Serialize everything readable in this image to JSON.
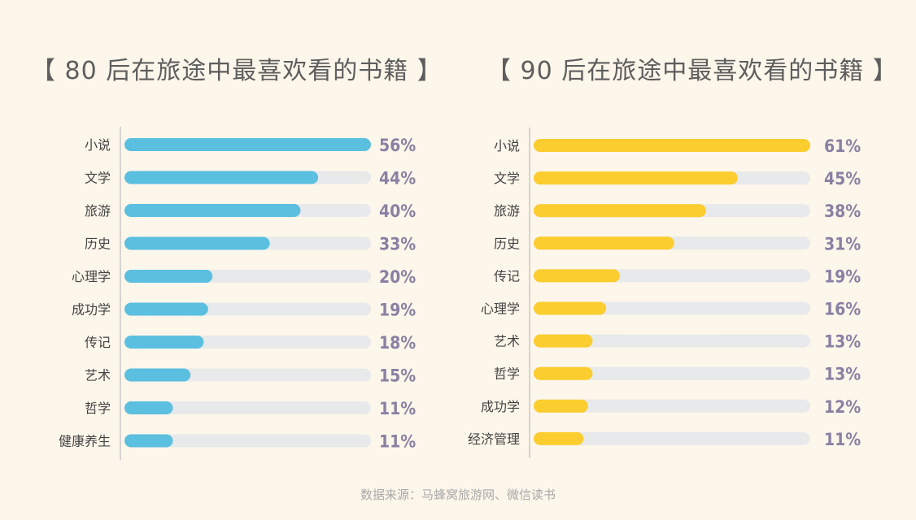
{
  "chart_data": [
    {
      "type": "bar",
      "orientation": "horizontal",
      "title": "【 80 后在旅途中最喜欢看的书籍 】",
      "categories": [
        "小说",
        "文学",
        "旅游",
        "历史",
        "心理学",
        "成功学",
        "传记",
        "艺术",
        "哲学",
        "健康养生"
      ],
      "values": [
        56,
        44,
        40,
        33,
        20,
        19,
        18,
        15,
        11,
        11
      ],
      "value_labels": [
        "56%",
        "44%",
        "40%",
        "33%",
        "20%",
        "19%",
        "18%",
        "15%",
        "11%",
        "11%"
      ],
      "xlim": [
        0,
        56
      ],
      "color": "#5bbfe0",
      "track_color": "#e8e9ea"
    },
    {
      "type": "bar",
      "orientation": "horizontal",
      "title": "【 90 后在旅途中最喜欢看的书籍 】",
      "categories": [
        "小说",
        "文学",
        "旅游",
        "历史",
        "传记",
        "心理学",
        "艺术",
        "哲学",
        "成功学",
        "经济管理"
      ],
      "values": [
        61,
        45,
        38,
        31,
        19,
        16,
        13,
        13,
        12,
        11
      ],
      "value_labels": [
        "61%",
        "45%",
        "38%",
        "31%",
        "19%",
        "16%",
        "13%",
        "13%",
        "12%",
        "11%"
      ],
      "xlim": [
        0,
        61
      ],
      "color": "#fbcd2e",
      "track_color": "#e8e9ea"
    }
  ],
  "source": "数据来源：马蜂窝旅游网、微信读书"
}
